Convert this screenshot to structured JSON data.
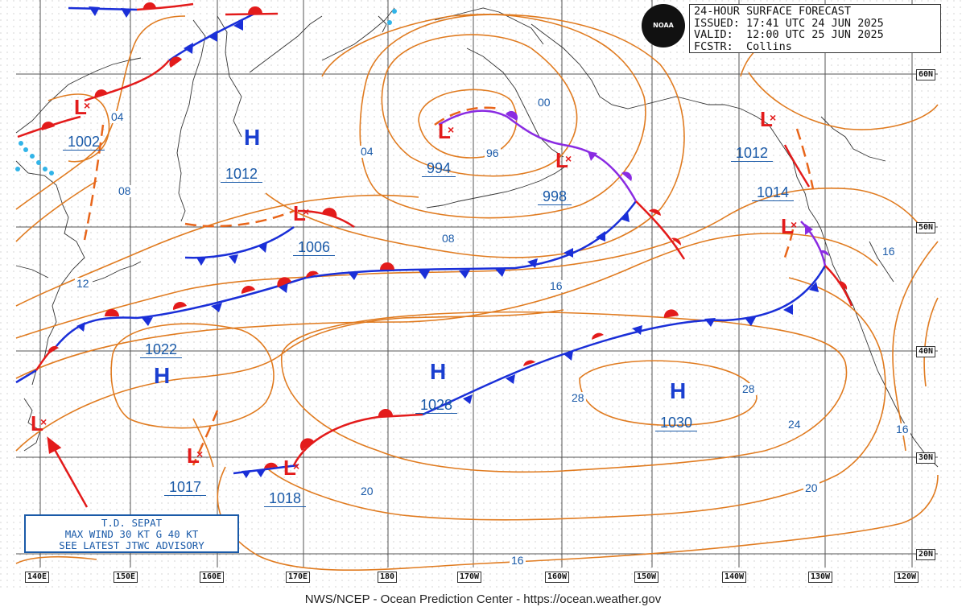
{
  "header": {
    "line1": "24-HOUR SURFACE FORECAST",
    "line2": "ISSUED: 17:41 UTC 24 JUN 2025",
    "line3": "VALID:  12:00 UTC 25 JUN 2025",
    "line4": "FCSTR:  Collins"
  },
  "logo": "NOAA",
  "footer": "NWS/NCEP - Ocean Prediction Center - https://ocean.weather.gov",
  "lat_labels": [
    "60N",
    "50N",
    "40N",
    "30N",
    "20N"
  ],
  "lon_labels": [
    "140E",
    "150E",
    "160E",
    "170E",
    "180",
    "170W",
    "160W",
    "150W",
    "140W",
    "130W",
    "120W"
  ],
  "pressure_centers": [
    {
      "type": "L",
      "value": "1002"
    },
    {
      "type": "H",
      "value": "1012"
    },
    {
      "type": "L",
      "value": "994"
    },
    {
      "type": "L",
      "value": "998"
    },
    {
      "type": "L",
      "value": "1012"
    },
    {
      "type": "L",
      "value": "1014"
    },
    {
      "type": "L",
      "value": "1006"
    },
    {
      "type": "H",
      "value": "1022"
    },
    {
      "type": "H",
      "value": "1028"
    },
    {
      "type": "H",
      "value": "1030"
    },
    {
      "type": "L",
      "value": "1017"
    },
    {
      "type": "L",
      "value": "1018"
    }
  ],
  "isobar_labels": [
    "04",
    "08",
    "12",
    "04",
    "00",
    "96",
    "08",
    "16",
    "16",
    "28",
    "28",
    "24",
    "20",
    "20",
    "16",
    "16"
  ],
  "advisory": {
    "line1": "T.D. SEPAT",
    "line2": "MAX WIND 30 KT G 40 KT",
    "line3": "SEE LATEST JTWC ADVISORY"
  },
  "colors": {
    "isobar": "#e07b20",
    "cold_front": "#1a2fd8",
    "warm_front": "#e31b1b",
    "occluded_front": "#8a2be2",
    "label_blue": "#1a5aa8",
    "grid": "#555555",
    "coast": "#333333"
  }
}
